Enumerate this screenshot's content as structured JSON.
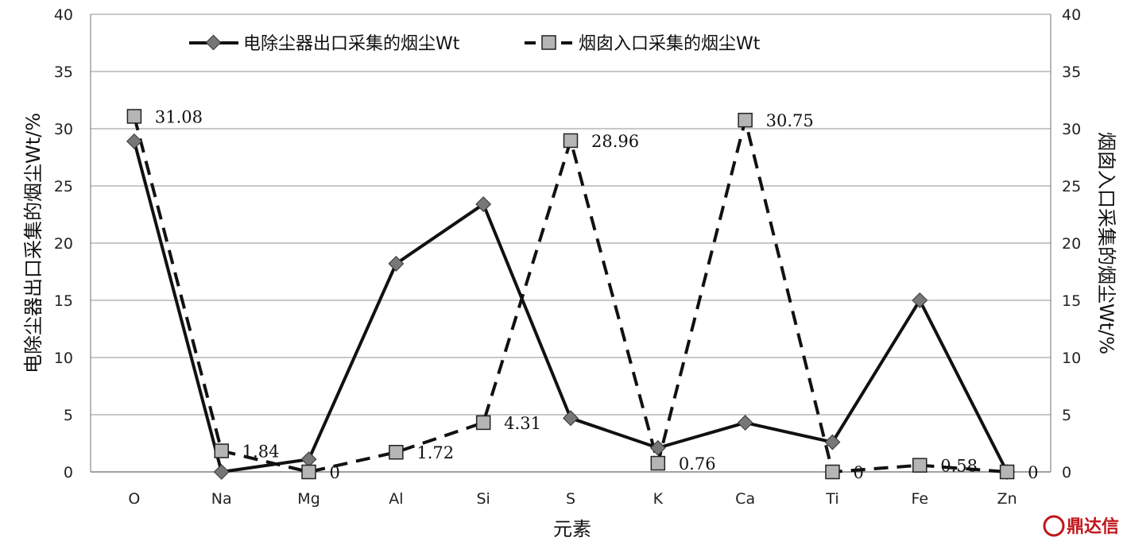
{
  "chart_data": {
    "type": "line",
    "categories": [
      "O",
      "Na",
      "Mg",
      "Al",
      "Si",
      "S",
      "K",
      "Ca",
      "Ti",
      "Fe",
      "Zn"
    ],
    "series": [
      {
        "name": "电除尘器出口采集的烟尘Wt",
        "axis": "left",
        "style": "solid",
        "marker": "diamond",
        "values": [
          28.9,
          0,
          1.1,
          18.2,
          23.4,
          4.7,
          2.1,
          4.3,
          2.6,
          15.0,
          0
        ],
        "data_labels": []
      },
      {
        "name": "烟囱入口采集的烟尘Wt",
        "axis": "right",
        "style": "dashed",
        "marker": "square",
        "values": [
          31.08,
          1.84,
          0,
          1.72,
          4.31,
          28.96,
          0.76,
          30.75,
          0,
          0.58,
          0
        ],
        "data_labels": [
          "31.08",
          "1.84",
          "0",
          "1.72",
          "4.31",
          "28.96",
          "0.76",
          "30.75",
          "0",
          "0.58",
          "0"
        ]
      }
    ],
    "xlabel": "元素",
    "ylabel_left": "电除尘器出口采集的烟尘Wt/%",
    "ylabel_right": "烟囱入口采集的烟尘Wt/%",
    "ylim": [
      0,
      40
    ],
    "yticks": [
      "0",
      "5",
      "10",
      "15",
      "20",
      "25",
      "30",
      "35",
      "40"
    ],
    "grid": true,
    "legend_position": "top"
  },
  "watermark": "鼎达信",
  "colors": {
    "line": "#111111",
    "diamond_marker": "#777777",
    "square_marker": "#b5b5b5",
    "grid": "#a8a8a8",
    "watermark": "#c0151b"
  }
}
